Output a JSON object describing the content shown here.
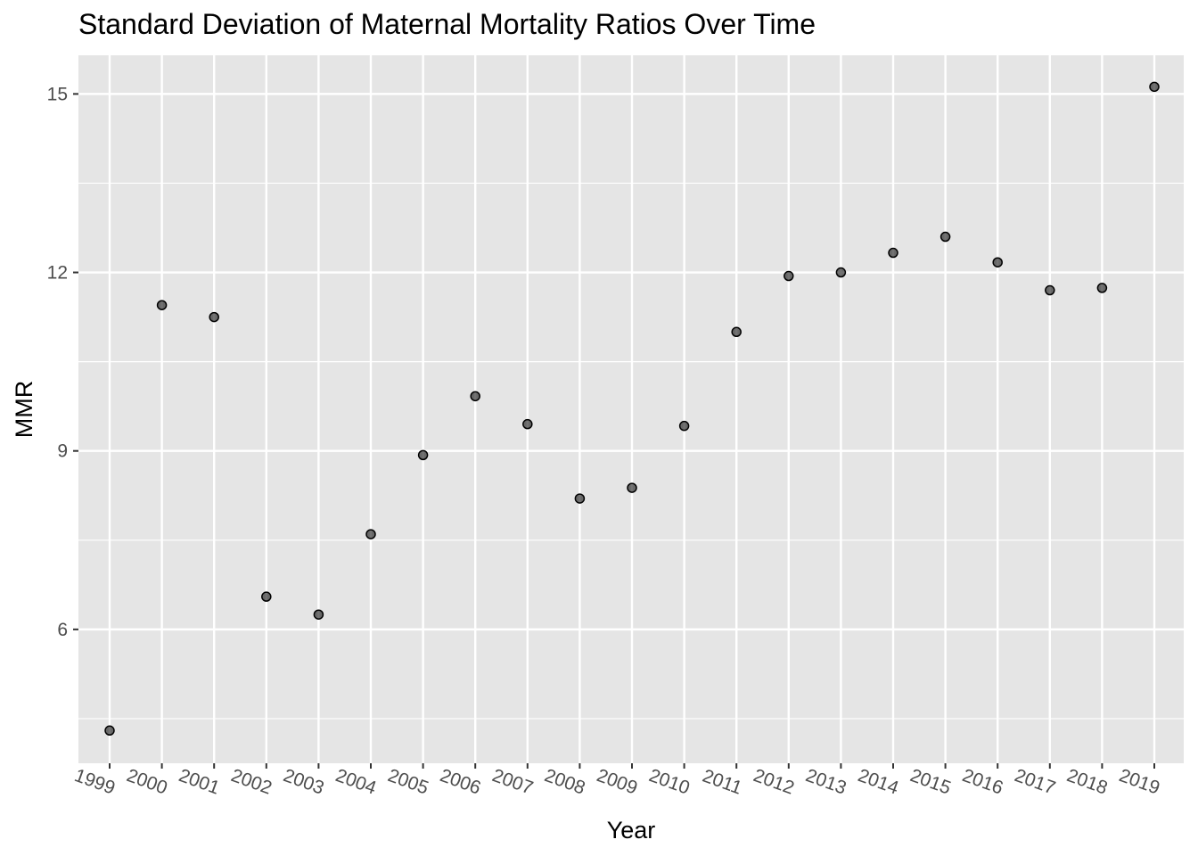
{
  "chart_data": {
    "type": "scatter",
    "title": "Standard Deviation of Maternal Mortality Ratios Over Time",
    "xlabel": "Year",
    "ylabel": "MMR",
    "x": [
      "1999",
      "2000",
      "2001",
      "2002",
      "2003",
      "2004",
      "2005",
      "2006",
      "2007",
      "2008",
      "2009",
      "2010",
      "2011",
      "2012",
      "2013",
      "2014",
      "2015",
      "2016",
      "2017",
      "2018",
      "2019"
    ],
    "y": [
      4.3,
      11.45,
      11.25,
      6.55,
      6.25,
      7.6,
      8.93,
      9.92,
      9.45,
      8.2,
      8.38,
      9.42,
      11.0,
      11.94,
      12.0,
      12.33,
      12.6,
      12.17,
      11.7,
      11.74,
      15.12
    ],
    "ylim": [
      3.75,
      15.65
    ],
    "yticks": [
      6,
      9,
      12,
      15
    ],
    "grid": true,
    "point_color": "#000000",
    "point_alpha": 0.55,
    "panel_background": "#e5e5e5",
    "grid_color": "#ffffff",
    "x_tick_rotation": "rotated ~20 degrees clockwise"
  }
}
